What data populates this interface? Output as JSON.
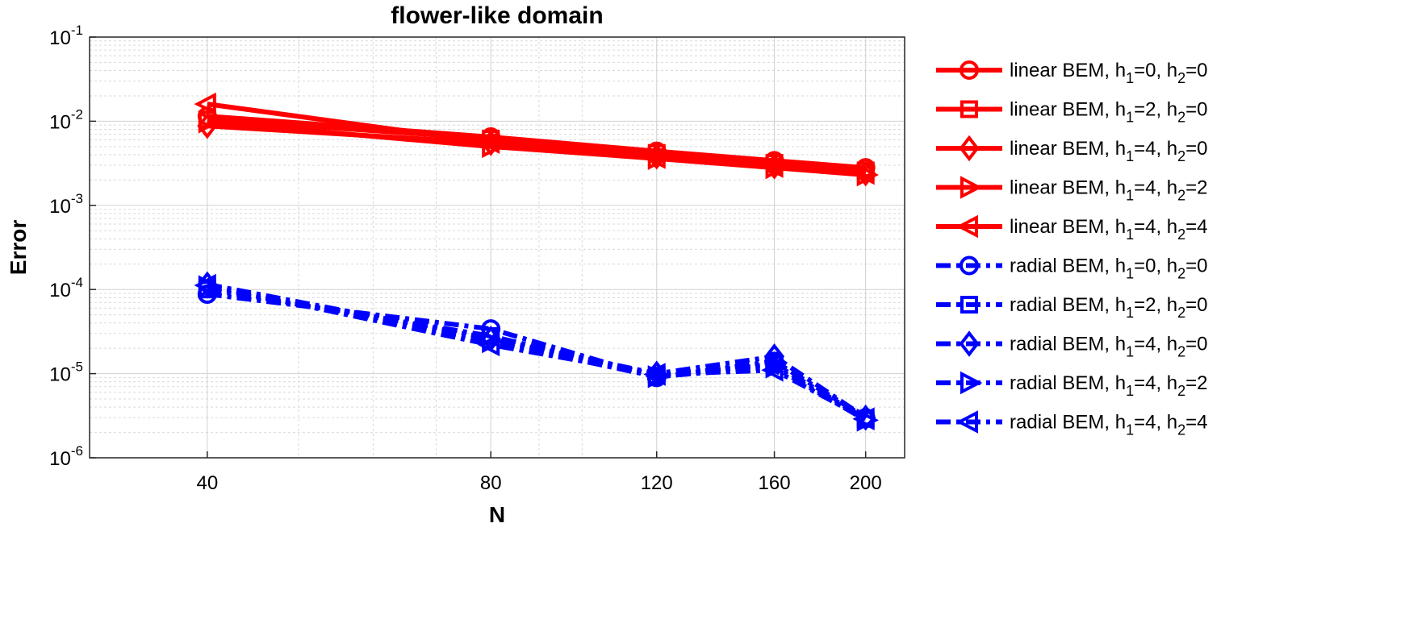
{
  "chart_data": {
    "type": "line",
    "title": "flower-like domain",
    "xlabel": "N",
    "ylabel": "Error",
    "x_scale": "log",
    "y_scale": "log",
    "xlim": [
      30,
      220
    ],
    "ylim": [
      1e-06,
      0.1
    ],
    "x": [
      40,
      80,
      120,
      160,
      200
    ],
    "x_tick_labels": [
      "40",
      "80",
      "120",
      "160",
      "200"
    ],
    "y_ticks": [
      {
        "base": "10",
        "exp": "-6",
        "value": 1e-06
      },
      {
        "base": "10",
        "exp": "-5",
        "value": 1e-05
      },
      {
        "base": "10",
        "exp": "-4",
        "value": 0.0001
      },
      {
        "base": "10",
        "exp": "-3",
        "value": 0.001
      },
      {
        "base": "10",
        "exp": "-2",
        "value": 0.01
      },
      {
        "base": "10",
        "exp": "-1",
        "value": 0.1
      }
    ],
    "grid": true,
    "legend_position": "outside-right",
    "series": [
      {
        "label_main": "linear BEM, h",
        "s1": "1",
        "mid": "=0, h",
        "s2": "2",
        "end": "=0",
        "color": "#ff0000",
        "line": "solid",
        "marker": "circle",
        "values": [
          0.0115,
          0.0065,
          0.0044,
          0.0034,
          0.0028
        ]
      },
      {
        "label_main": "linear BEM, h",
        "s1": "1",
        "mid": "=2, h",
        "s2": "2",
        "end": "=0",
        "color": "#ff0000",
        "line": "solid",
        "marker": "square",
        "values": [
          0.0105,
          0.0062,
          0.0042,
          0.0032,
          0.0026
        ]
      },
      {
        "label_main": "linear BEM, h",
        "s1": "1",
        "mid": "=4, h",
        "s2": "2",
        "end": "=0",
        "color": "#ff0000",
        "line": "solid",
        "marker": "diamond",
        "values": [
          0.0088,
          0.0055,
          0.0038,
          0.0029,
          0.0024
        ]
      },
      {
        "label_main": "linear BEM, h",
        "s1": "1",
        "mid": "=4, h",
        "s2": "2",
        "end": "=2",
        "color": "#ff0000",
        "line": "solid",
        "marker": "triangle-right",
        "values": [
          0.0098,
          0.005,
          0.0036,
          0.0028,
          0.0023
        ]
      },
      {
        "label_main": "linear BEM, h",
        "s1": "1",
        "mid": "=4, h",
        "s2": "2",
        "end": "=4",
        "color": "#ff0000",
        "line": "solid",
        "marker": "triangle-left",
        "values": [
          0.016,
          0.0056,
          0.0037,
          0.0029,
          0.0024
        ]
      },
      {
        "label_main": "radial BEM, h",
        "s1": "1",
        "mid": "=0, h",
        "s2": "2",
        "end": "=0",
        "color": "#0000ff",
        "line": "dashdot",
        "marker": "circle",
        "values": [
          8.8e-05,
          3.4e-05,
          9e-06,
          1.4e-05,
          3e-06
        ]
      },
      {
        "label_main": "radial BEM, h",
        "s1": "1",
        "mid": "=2, h",
        "s2": "2",
        "end": "=0",
        "color": "#0000ff",
        "line": "dashdot",
        "marker": "square",
        "values": [
          0.0001,
          2.8e-05,
          9.5e-06,
          1.3e-05,
          2.9e-06
        ]
      },
      {
        "label_main": "radial BEM, h",
        "s1": "1",
        "mid": "=4, h",
        "s2": "2",
        "end": "=0",
        "color": "#0000ff",
        "line": "dashdot",
        "marker": "diamond",
        "values": [
          0.000115,
          2.6e-05,
          1e-05,
          1.6e-05,
          3e-06
        ]
      },
      {
        "label_main": "radial BEM, h",
        "s1": "1",
        "mid": "=4, h",
        "s2": "2",
        "end": "=2",
        "color": "#0000ff",
        "line": "dashdot",
        "marker": "triangle-right",
        "values": [
          0.000108,
          2.4e-05,
          9.2e-06,
          1.2e-05,
          2.8e-06
        ]
      },
      {
        "label_main": "radial BEM, h",
        "s1": "1",
        "mid": "=4, h",
        "s2": "2",
        "end": "=4",
        "color": "#0000ff",
        "line": "dashdot",
        "marker": "triangle-left",
        "values": [
          0.000112,
          2.2e-05,
          9.8e-06,
          1.1e-05,
          2.9e-06
        ]
      }
    ]
  }
}
